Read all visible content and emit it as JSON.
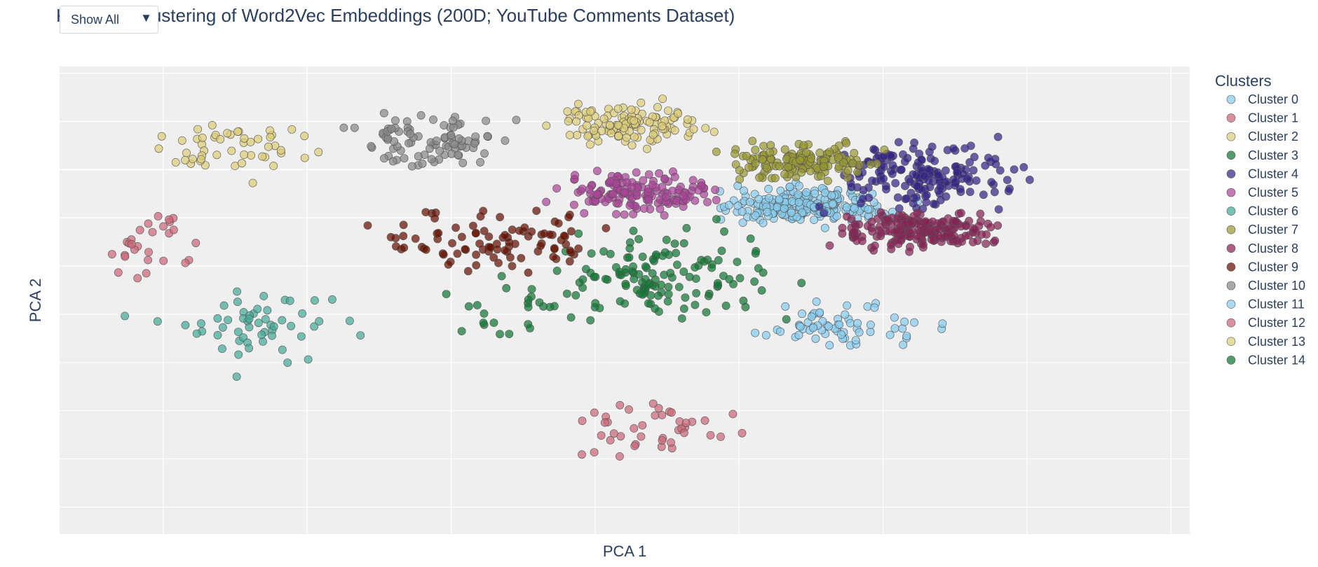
{
  "dropdown": {
    "label": "Show All",
    "arrow_icon": "triangle-down-icon"
  },
  "chart_data": {
    "type": "scatter",
    "title": "K-Means Clustering of Word2Vec Embeddings (200D; YouTube Comments Dataset)",
    "xlabel": "PCA 1",
    "ylabel": "PCA 2",
    "xlim": [
      -5.5,
      2.35
    ],
    "ylim": [
      -2.45,
      2.4
    ],
    "grid": true,
    "x_gridlines": [
      -4.78,
      -3.78,
      -2.78,
      -1.78,
      -0.78,
      0.22,
      1.22,
      2.22
    ],
    "y_gridlines": [
      -2.17,
      -1.67,
      -1.17,
      -0.67,
      -0.17,
      0.33,
      0.83,
      1.33,
      1.83,
      2.33
    ],
    "tick_labels_shown": false,
    "plot_background": "#efefef",
    "legend": {
      "title": "Clusters",
      "placement": "right"
    },
    "series": [
      {
        "name": "Cluster 0",
        "color": "#88cced",
        "center": [
          -0.3,
          0.95
        ],
        "spread": [
          0.55,
          0.17
        ],
        "count": 230
      },
      {
        "name": "Cluster 1",
        "color": "#cc6677",
        "center": [
          -4.85,
          0.55
        ],
        "spread": [
          0.35,
          0.35
        ],
        "count": 28
      },
      {
        "name": "Cluster 2",
        "color": "#ddcc77",
        "center": [
          -4.25,
          1.55
        ],
        "spread": [
          0.5,
          0.3
        ],
        "count": 50
      },
      {
        "name": "Cluster 3",
        "color": "#117733",
        "center": [
          -1.25,
          0.25
        ],
        "spread": [
          0.75,
          0.4
        ],
        "count": 130
      },
      {
        "name": "Cluster 4",
        "color": "#332288",
        "center": [
          0.5,
          1.25
        ],
        "spread": [
          0.6,
          0.35
        ],
        "count": 175
      },
      {
        "name": "Cluster 5",
        "color": "#aa4499",
        "center": [
          -1.5,
          1.1
        ],
        "spread": [
          0.5,
          0.18
        ],
        "count": 155
      },
      {
        "name": "Cluster 6",
        "color": "#44aa99",
        "center": [
          -4.2,
          -0.3
        ],
        "spread": [
          0.7,
          0.35
        ],
        "count": 55
      },
      {
        "name": "Cluster 7",
        "color": "#999933",
        "center": [
          -0.35,
          1.4
        ],
        "spread": [
          0.5,
          0.18
        ],
        "count": 155
      },
      {
        "name": "Cluster 8",
        "color": "#882255",
        "center": [
          0.45,
          0.7
        ],
        "spread": [
          0.55,
          0.17
        ],
        "count": 190
      },
      {
        "name": "Cluster 9",
        "color": "#661100",
        "center": [
          -2.5,
          0.6
        ],
        "spread": [
          0.65,
          0.3
        ],
        "count": 95
      },
      {
        "name": "Cluster 10",
        "color": "#888888",
        "center": [
          -2.9,
          1.6
        ],
        "spread": [
          0.5,
          0.28
        ],
        "count": 90
      },
      {
        "name": "Cluster 11",
        "color": "#88ccee",
        "center": [
          0.0,
          -0.3
        ],
        "spread": [
          0.6,
          0.25
        ],
        "count": 65
      },
      {
        "name": "Cluster 12",
        "color": "#cc6677",
        "center": [
          -1.4,
          -1.35
        ],
        "spread": [
          0.6,
          0.3
        ],
        "count": 42
      },
      {
        "name": "Cluster 13",
        "color": "#ddcc77",
        "center": [
          -1.55,
          1.8
        ],
        "spread": [
          0.45,
          0.2
        ],
        "count": 120
      },
      {
        "name": "Cluster 14",
        "color": "#117733",
        "center": [
          -2.3,
          -0.1
        ],
        "spread": [
          0.5,
          0.3
        ],
        "count": 25
      }
    ]
  }
}
